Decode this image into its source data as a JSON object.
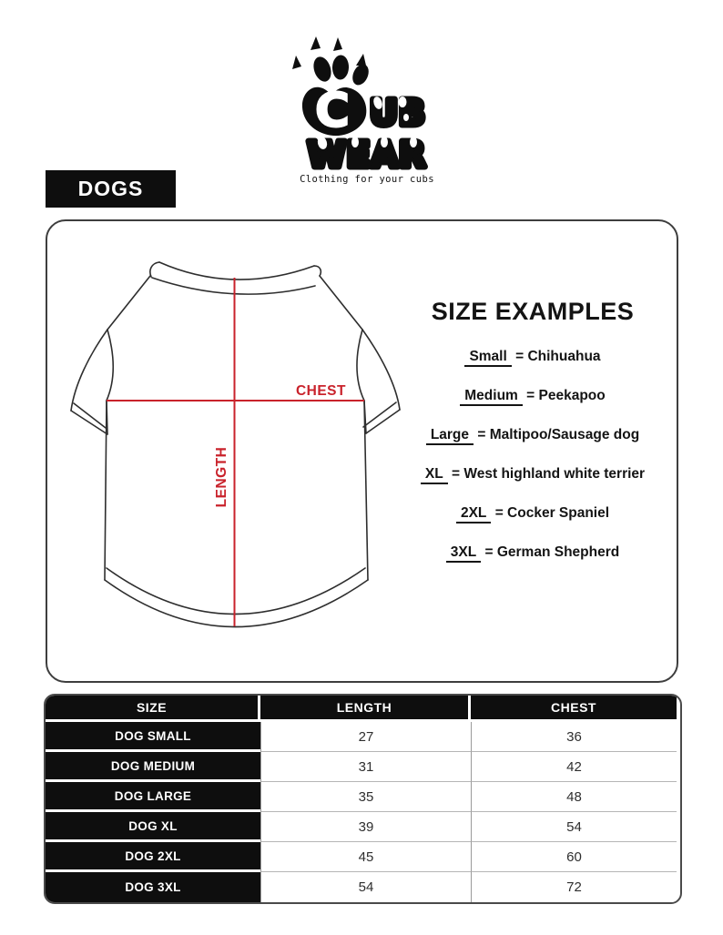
{
  "brand": {
    "letter_c": "C",
    "letters_ub": "UB",
    "word_wear": "WEAR",
    "tagline": "Clothing for your cubs"
  },
  "category_label": "DOGS",
  "diagram": {
    "chest_label": "CHEST",
    "length_label": "LENGTH"
  },
  "size_examples": {
    "title": "SIZE EXAMPLES",
    "separator": "=",
    "items": [
      {
        "size": "Small",
        "example": "Chihuahua"
      },
      {
        "size": "Medium",
        "example": "Peekapoo"
      },
      {
        "size": "Large",
        "example": "Maltipoo/Sausage dog"
      },
      {
        "size": "XL",
        "example": "West highland white terrier"
      },
      {
        "size": "2XL",
        "example": "Cocker Spaniel"
      },
      {
        "size": "3XL",
        "example": "German Shepherd"
      }
    ]
  },
  "table": {
    "headers": [
      "SIZE",
      "LENGTH",
      "CHEST"
    ],
    "rows": [
      {
        "size": "DOG SMALL",
        "length": "27",
        "chest": "36"
      },
      {
        "size": "DOG MEDIUM",
        "length": "31",
        "chest": "42"
      },
      {
        "size": "DOG LARGE",
        "length": "35",
        "chest": "48"
      },
      {
        "size": "DOG XL",
        "length": "39",
        "chest": "54"
      },
      {
        "size": "DOG 2XL",
        "length": "45",
        "chest": "60"
      },
      {
        "size": "DOG 3XL",
        "length": "54",
        "chest": "72"
      }
    ]
  },
  "colors": {
    "accent_red": "#c9222b",
    "black": "#0e0e0e"
  }
}
